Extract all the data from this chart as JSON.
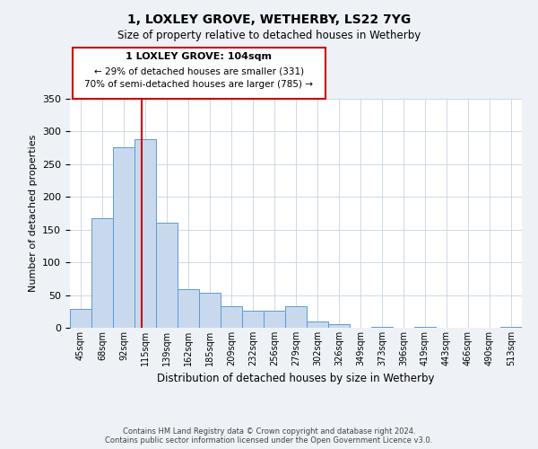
{
  "title": "1, LOXLEY GROVE, WETHERBY, LS22 7YG",
  "subtitle": "Size of property relative to detached houses in Wetherby",
  "xlabel": "Distribution of detached houses by size in Wetherby",
  "ylabel": "Number of detached properties",
  "bar_labels": [
    "45sqm",
    "68sqm",
    "92sqm",
    "115sqm",
    "139sqm",
    "162sqm",
    "185sqm",
    "209sqm",
    "232sqm",
    "256sqm",
    "279sqm",
    "302sqm",
    "326sqm",
    "349sqm",
    "373sqm",
    "396sqm",
    "419sqm",
    "443sqm",
    "466sqm",
    "490sqm",
    "513sqm"
  ],
  "bar_values": [
    29,
    168,
    276,
    288,
    161,
    59,
    54,
    33,
    26,
    26,
    33,
    10,
    5,
    0,
    2,
    0,
    1,
    0,
    0,
    0,
    2
  ],
  "bar_color": "#c9d9ed",
  "bar_edge_color": "#5b9bd5",
  "vline_x": 2.85,
  "vline_color": "#cc0000",
  "ylim": [
    0,
    350
  ],
  "yticks": [
    0,
    50,
    100,
    150,
    200,
    250,
    300,
    350
  ],
  "annotation_title": "1 LOXLEY GROVE: 104sqm",
  "annotation_line1": "← 29% of detached houses are smaller (331)",
  "annotation_line2": "70% of semi-detached houses are larger (785) →",
  "annotation_box_color": "#cc0000",
  "footnote1": "Contains HM Land Registry data © Crown copyright and database right 2024.",
  "footnote2": "Contains public sector information licensed under the Open Government Licence v3.0.",
  "background_color": "#eef2f7",
  "plot_background_color": "#ffffff"
}
